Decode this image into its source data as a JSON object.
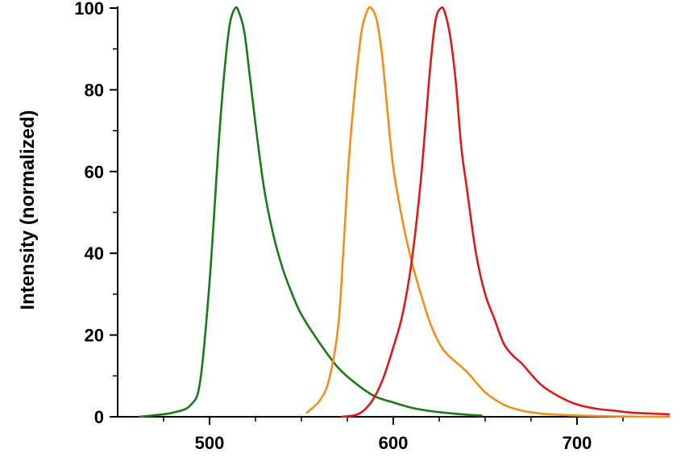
{
  "chart_data": {
    "type": "line",
    "title": "",
    "xlabel": "",
    "ylabel": "Intensity (normalized)",
    "xlim": [
      450,
      750
    ],
    "ylim": [
      0,
      100
    ],
    "x_ticks_major": [
      500,
      600,
      700
    ],
    "x_ticks_minor": [
      475,
      525,
      550,
      575,
      625,
      650,
      675,
      725
    ],
    "y_ticks_major": [
      0,
      20,
      40,
      60,
      80,
      100
    ],
    "y_ticks_minor": [
      10,
      30,
      50,
      70,
      90
    ],
    "grid": false,
    "legend": "none",
    "series": [
      {
        "color": "#1a7a1a",
        "x": [
          462,
          480,
          490,
          495,
          500,
          505,
          508,
          511,
          514,
          516,
          519,
          522,
          526,
          530,
          535,
          540,
          545,
          550,
          560,
          570,
          580,
          590,
          600,
          610,
          620,
          630,
          640,
          648
        ],
        "y": [
          0,
          1,
          3,
          9,
          33,
          67,
          84,
          96,
          100,
          99,
          94,
          83,
          68,
          55,
          44,
          36,
          30,
          25,
          18,
          12,
          8,
          5,
          3.5,
          2.2,
          1.4,
          0.9,
          0.5,
          0.3
        ]
      },
      {
        "color": "#f0901a",
        "x": [
          553,
          560,
          565,
          570,
          573,
          576,
          580,
          583,
          586,
          588,
          591,
          594,
          597,
          600,
          605,
          610,
          615,
          620,
          625,
          630,
          640,
          650,
          660,
          670,
          680,
          690,
          700,
          720,
          740,
          750
        ],
        "y": [
          1,
          4,
          9,
          22,
          42,
          64,
          84,
          95,
          99.5,
          100,
          97,
          88,
          74,
          61,
          48,
          38,
          30,
          23,
          18,
          15,
          11,
          6,
          3,
          1.5,
          0.8,
          0.5,
          0.3,
          0.1,
          0,
          0
        ]
      },
      {
        "color": "#dd1a1a",
        "x": [
          572,
          580,
          585,
          590,
          595,
          600,
          605,
          610,
          615,
          620,
          623,
          626,
          628,
          631,
          634,
          637,
          640,
          645,
          650,
          655,
          660,
          665,
          670,
          680,
          690,
          700,
          710,
          720,
          730,
          740,
          750
        ],
        "y": [
          0,
          0.5,
          2,
          5,
          10,
          17,
          25,
          38,
          58,
          85,
          97,
          100,
          99,
          93,
          82,
          66,
          56,
          40,
          30,
          24,
          18,
          15,
          13,
          8,
          5,
          3,
          2,
          1.5,
          1,
          0.8,
          0.6
        ]
      }
    ]
  }
}
